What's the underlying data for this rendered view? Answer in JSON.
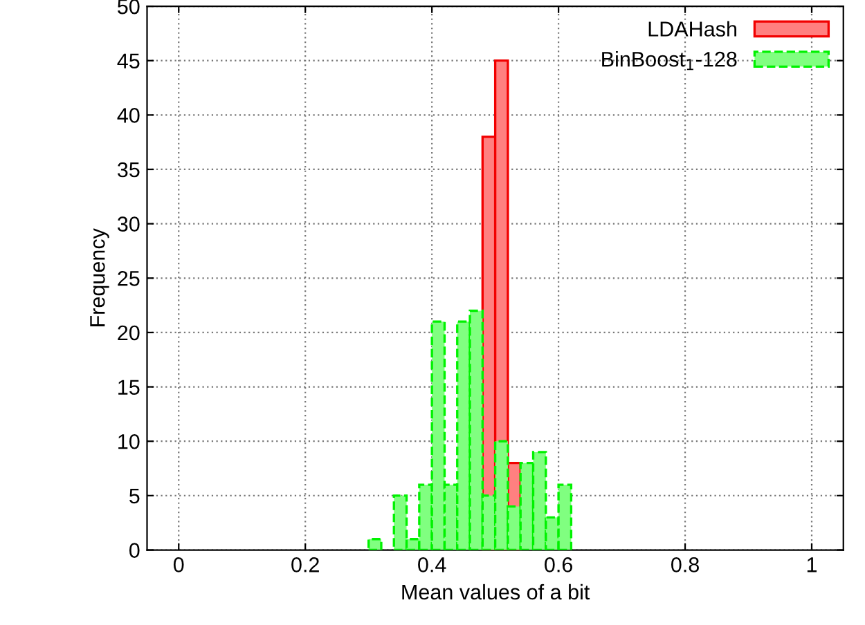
{
  "chart_data": {
    "type": "histogram",
    "xlabel": "Mean values of a bit",
    "ylabel": "Frequency",
    "bins": [
      0.3,
      0.32,
      0.34,
      0.36,
      0.38,
      0.4,
      0.42,
      0.44,
      0.46,
      0.48,
      0.5,
      0.52,
      0.54,
      0.56,
      0.58,
      0.6,
      0.62
    ],
    "series": [
      {
        "name": "LDAHash",
        "color": "#ff8080",
        "line_style": "solid",
        "values": [
          null,
          null,
          null,
          null,
          null,
          null,
          null,
          null,
          null,
          38,
          45,
          8,
          null,
          null,
          null,
          null
        ]
      },
      {
        "name": "BinBoost$_{1}$-128",
        "color": "#80ff80",
        "line_style": "dashed",
        "values": [
          1,
          0,
          5,
          1,
          6,
          21,
          6,
          21,
          22,
          5,
          10,
          4,
          8,
          9,
          3,
          6
        ]
      }
    ],
    "xlim": [
      -0.05,
      1.05
    ],
    "xticks": [
      0,
      0.2,
      0.4,
      0.6,
      0.8,
      1
    ],
    "ylim": [
      0,
      50
    ],
    "yticks": [
      0,
      5,
      10,
      15,
      20,
      25,
      30,
      35,
      40,
      45,
      50
    ],
    "grid": true,
    "legend": "top right"
  }
}
